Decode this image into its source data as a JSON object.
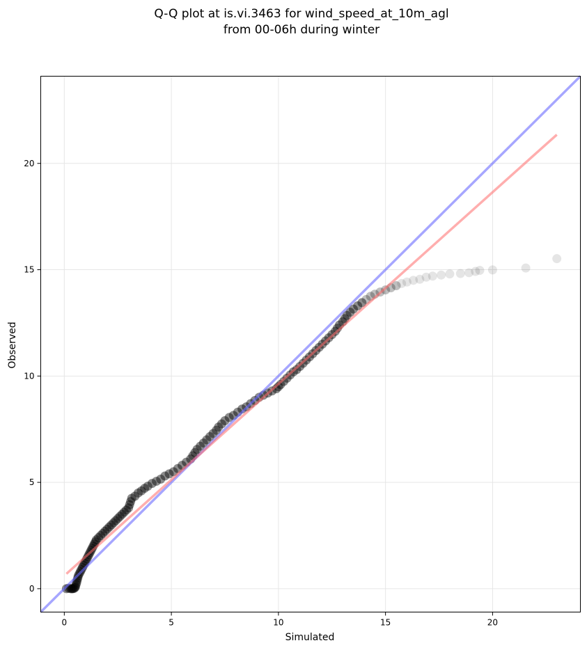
{
  "chart_data": {
    "type": "scatter",
    "title_lines": [
      "Q-Q plot at is.vi.3463 for wind_speed_at_10m_agl",
      "from 00-06h during winter"
    ],
    "xlabel": "Simulated",
    "ylabel": "Observed",
    "xlim": [
      -1.1,
      24.1
    ],
    "ylim": [
      -1.1,
      24.1
    ],
    "xticks": [
      0,
      5,
      10,
      15,
      20
    ],
    "yticks": [
      0,
      5,
      10,
      15,
      20
    ],
    "grid": true,
    "colors": {
      "points": "#000000",
      "identity_line": "#6b6bff",
      "fit_line": "#ff6b6b"
    },
    "identity_line": {
      "x": [
        -1.1,
        24.1
      ],
      "y": [
        -1.1,
        24.1
      ]
    },
    "fit_line": {
      "x": [
        0.1,
        23.0
      ],
      "y": [
        0.7,
        21.35
      ]
    },
    "points": [
      [
        0.1,
        0.0
      ],
      [
        0.2,
        0.02
      ],
      [
        0.3,
        0.0
      ],
      [
        0.35,
        0.0
      ],
      [
        0.4,
        0.0
      ],
      [
        0.45,
        0.01
      ],
      [
        0.5,
        0.05
      ],
      [
        0.52,
        0.1
      ],
      [
        0.55,
        0.2
      ],
      [
        0.58,
        0.3
      ],
      [
        0.6,
        0.4
      ],
      [
        0.63,
        0.5
      ],
      [
        0.65,
        0.6
      ],
      [
        0.7,
        0.7
      ],
      [
        0.75,
        0.8
      ],
      [
        0.8,
        0.9
      ],
      [
        0.85,
        1.0
      ],
      [
        0.9,
        1.1
      ],
      [
        0.95,
        1.2
      ],
      [
        1.0,
        1.3
      ],
      [
        1.05,
        1.4
      ],
      [
        1.1,
        1.5
      ],
      [
        1.15,
        1.6
      ],
      [
        1.2,
        1.7
      ],
      [
        1.25,
        1.8
      ],
      [
        1.3,
        1.9
      ],
      [
        1.35,
        2.0
      ],
      [
        1.4,
        2.1
      ],
      [
        1.45,
        2.2
      ],
      [
        1.5,
        2.3
      ],
      [
        1.6,
        2.4
      ],
      [
        1.7,
        2.5
      ],
      [
        1.8,
        2.6
      ],
      [
        1.9,
        2.7
      ],
      [
        2.0,
        2.8
      ],
      [
        2.1,
        2.9
      ],
      [
        2.2,
        3.0
      ],
      [
        2.3,
        3.1
      ],
      [
        2.4,
        3.2
      ],
      [
        2.5,
        3.3
      ],
      [
        2.6,
        3.4
      ],
      [
        2.7,
        3.5
      ],
      [
        2.8,
        3.6
      ],
      [
        2.9,
        3.7
      ],
      [
        3.0,
        3.8
      ],
      [
        3.05,
        3.95
      ],
      [
        3.1,
        4.1
      ],
      [
        3.15,
        4.25
      ],
      [
        3.3,
        4.35
      ],
      [
        3.45,
        4.5
      ],
      [
        3.6,
        4.6
      ],
      [
        3.75,
        4.72
      ],
      [
        3.9,
        4.82
      ],
      [
        4.1,
        4.95
      ],
      [
        4.3,
        5.05
      ],
      [
        4.5,
        5.15
      ],
      [
        4.7,
        5.3
      ],
      [
        4.9,
        5.4
      ],
      [
        5.1,
        5.5
      ],
      [
        5.3,
        5.65
      ],
      [
        5.5,
        5.8
      ],
      [
        5.7,
        5.95
      ],
      [
        5.9,
        6.1
      ],
      [
        6.0,
        6.25
      ],
      [
        6.1,
        6.4
      ],
      [
        6.2,
        6.55
      ],
      [
        6.35,
        6.7
      ],
      [
        6.5,
        6.85
      ],
      [
        6.65,
        7.0
      ],
      [
        6.8,
        7.15
      ],
      [
        6.95,
        7.3
      ],
      [
        7.1,
        7.45
      ],
      [
        7.2,
        7.6
      ],
      [
        7.35,
        7.75
      ],
      [
        7.5,
        7.9
      ],
      [
        7.7,
        8.05
      ],
      [
        7.9,
        8.15
      ],
      [
        8.1,
        8.3
      ],
      [
        8.3,
        8.45
      ],
      [
        8.5,
        8.55
      ],
      [
        8.7,
        8.7
      ],
      [
        8.9,
        8.85
      ],
      [
        9.1,
        9.0
      ],
      [
        9.3,
        9.1
      ],
      [
        9.5,
        9.2
      ],
      [
        9.7,
        9.3
      ],
      [
        9.9,
        9.4
      ],
      [
        10.0,
        9.5
      ],
      [
        10.1,
        9.6
      ],
      [
        10.25,
        9.75
      ],
      [
        10.4,
        9.9
      ],
      [
        10.55,
        10.05
      ],
      [
        10.7,
        10.2
      ],
      [
        10.85,
        10.3
      ],
      [
        11.0,
        10.45
      ],
      [
        11.15,
        10.6
      ],
      [
        11.3,
        10.75
      ],
      [
        11.45,
        10.9
      ],
      [
        11.6,
        11.05
      ],
      [
        11.75,
        11.2
      ],
      [
        11.9,
        11.35
      ],
      [
        12.05,
        11.5
      ],
      [
        12.2,
        11.65
      ],
      [
        12.35,
        11.8
      ],
      [
        12.5,
        11.95
      ],
      [
        12.65,
        12.1
      ],
      [
        12.75,
        12.25
      ],
      [
        12.85,
        12.4
      ],
      [
        13.0,
        12.55
      ],
      [
        13.1,
        12.7
      ],
      [
        13.2,
        12.85
      ],
      [
        13.35,
        13.0
      ],
      [
        13.5,
        13.15
      ],
      [
        13.7,
        13.3
      ],
      [
        13.9,
        13.45
      ],
      [
        14.1,
        13.6
      ],
      [
        14.3,
        13.75
      ],
      [
        14.5,
        13.85
      ],
      [
        14.75,
        13.95
      ],
      [
        15.0,
        14.05
      ],
      [
        15.25,
        14.15
      ],
      [
        15.5,
        14.25
      ],
      [
        15.75,
        14.35
      ],
      [
        16.0,
        14.42
      ],
      [
        16.3,
        14.5
      ],
      [
        16.6,
        14.55
      ],
      [
        16.9,
        14.65
      ],
      [
        17.2,
        14.7
      ],
      [
        17.6,
        14.75
      ],
      [
        18.0,
        14.8
      ],
      [
        18.5,
        14.82
      ],
      [
        18.9,
        14.86
      ],
      [
        19.2,
        14.92
      ],
      [
        19.4,
        14.97
      ],
      [
        20.0,
        14.99
      ],
      [
        21.55,
        15.08
      ],
      [
        23.0,
        15.52
      ]
    ]
  }
}
